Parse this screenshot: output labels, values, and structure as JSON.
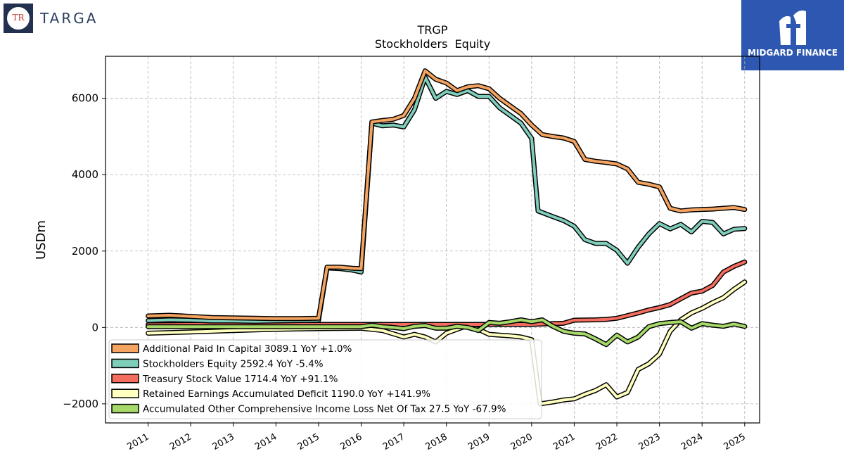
{
  "brand_left": {
    "logo_letters": "TR",
    "name": "TARGA"
  },
  "brand_right": {
    "name": "MIDGARD FINANCE"
  },
  "chart_data": {
    "type": "line",
    "title": "TRGP",
    "subtitle": "Stockholders  Equity",
    "ylabel": "USDm",
    "xlabel": "",
    "ylim": [
      -2500,
      7100
    ],
    "xlim": [
      2010.0,
      2025.35
    ],
    "yticks": [
      -2000,
      0,
      2000,
      4000,
      6000
    ],
    "ytick_labels": [
      "−2000",
      "0",
      "2000",
      "4000",
      "6000"
    ],
    "xticks": [
      2011,
      2012,
      2013,
      2014,
      2015,
      2016,
      2017,
      2018,
      2019,
      2020,
      2021,
      2022,
      2023,
      2024,
      2025
    ],
    "xtick_labels": [
      "2011",
      "2012",
      "2013",
      "2014",
      "2015",
      "2016",
      "2017",
      "2018",
      "2019",
      "2020",
      "2021",
      "2022",
      "2023",
      "2024",
      "2025"
    ],
    "grid": true,
    "legend_position": "lower-left",
    "series": [
      {
        "name": "Additional Paid In Capital",
        "legend_label": "Additional Paid In Capital  3089.1 YoY +1.0%",
        "color": "#f4a460",
        "points": [
          [
            2011.0,
            300
          ],
          [
            2011.5,
            320
          ],
          [
            2012.0,
            290
          ],
          [
            2012.5,
            260
          ],
          [
            2013.0,
            250
          ],
          [
            2013.5,
            240
          ],
          [
            2014.0,
            230
          ],
          [
            2014.5,
            230
          ],
          [
            2015.0,
            240
          ],
          [
            2015.2,
            1580
          ],
          [
            2015.5,
            1580
          ],
          [
            2015.8,
            1550
          ],
          [
            2016.0,
            1540
          ],
          [
            2016.25,
            5380
          ],
          [
            2016.5,
            5420
          ],
          [
            2016.75,
            5450
          ],
          [
            2017.0,
            5550
          ],
          [
            2017.25,
            6000
          ],
          [
            2017.5,
            6720
          ],
          [
            2017.75,
            6500
          ],
          [
            2018.0,
            6400
          ],
          [
            2018.25,
            6200
          ],
          [
            2018.5,
            6300
          ],
          [
            2018.75,
            6330
          ],
          [
            2019.0,
            6250
          ],
          [
            2019.25,
            6000
          ],
          [
            2019.5,
            5800
          ],
          [
            2019.75,
            5600
          ],
          [
            2020.0,
            5300
          ],
          [
            2020.25,
            5050
          ],
          [
            2020.5,
            5000
          ],
          [
            2020.75,
            4960
          ],
          [
            2021.0,
            4870
          ],
          [
            2021.25,
            4400
          ],
          [
            2021.5,
            4350
          ],
          [
            2021.75,
            4320
          ],
          [
            2022.0,
            4280
          ],
          [
            2022.25,
            4150
          ],
          [
            2022.5,
            3800
          ],
          [
            2022.75,
            3750
          ],
          [
            2023.0,
            3680
          ],
          [
            2023.25,
            3120
          ],
          [
            2023.5,
            3050
          ],
          [
            2023.75,
            3080
          ],
          [
            2024.0,
            3090
          ],
          [
            2024.25,
            3100
          ],
          [
            2024.5,
            3120
          ],
          [
            2024.75,
            3140
          ],
          [
            2025.0,
            3089
          ]
        ]
      },
      {
        "name": "Stockholders Equity",
        "legend_label": "Stockholders Equity  2592.4 YoY -5.4%",
        "color": "#7fcdbb",
        "points": [
          [
            2011.0,
            180
          ],
          [
            2011.5,
            200
          ],
          [
            2012.0,
            190
          ],
          [
            2012.5,
            170
          ],
          [
            2013.0,
            170
          ],
          [
            2013.5,
            160
          ],
          [
            2014.0,
            170
          ],
          [
            2014.5,
            180
          ],
          [
            2015.0,
            190
          ],
          [
            2015.2,
            1560
          ],
          [
            2015.5,
            1540
          ],
          [
            2015.8,
            1500
          ],
          [
            2016.0,
            1450
          ],
          [
            2016.25,
            5350
          ],
          [
            2016.5,
            5280
          ],
          [
            2016.75,
            5300
          ],
          [
            2017.0,
            5250
          ],
          [
            2017.25,
            5700
          ],
          [
            2017.5,
            6550
          ],
          [
            2017.75,
            6000
          ],
          [
            2018.0,
            6180
          ],
          [
            2018.25,
            6100
          ],
          [
            2018.5,
            6200
          ],
          [
            2018.75,
            6050
          ],
          [
            2019.0,
            6050
          ],
          [
            2019.25,
            5750
          ],
          [
            2019.5,
            5550
          ],
          [
            2019.75,
            5350
          ],
          [
            2020.0,
            4950
          ],
          [
            2020.15,
            3050
          ],
          [
            2020.5,
            2900
          ],
          [
            2020.75,
            2800
          ],
          [
            2021.0,
            2650
          ],
          [
            2021.25,
            2300
          ],
          [
            2021.5,
            2200
          ],
          [
            2021.75,
            2200
          ],
          [
            2022.0,
            2020
          ],
          [
            2022.25,
            1680
          ],
          [
            2022.5,
            2100
          ],
          [
            2022.75,
            2450
          ],
          [
            2023.0,
            2720
          ],
          [
            2023.25,
            2580
          ],
          [
            2023.5,
            2700
          ],
          [
            2023.75,
            2500
          ],
          [
            2024.0,
            2780
          ],
          [
            2024.25,
            2750
          ],
          [
            2024.5,
            2450
          ],
          [
            2024.75,
            2570
          ],
          [
            2025.0,
            2592
          ]
        ]
      },
      {
        "name": "Treasury Stock Value",
        "legend_label": "Treasury Stock Value  1714.4 YoY +91.1%",
        "color": "#f46d5e",
        "points": [
          [
            2011.0,
            70
          ],
          [
            2012.0,
            80
          ],
          [
            2013.0,
            80
          ],
          [
            2014.0,
            80
          ],
          [
            2015.0,
            80
          ],
          [
            2016.0,
            80
          ],
          [
            2017.0,
            80
          ],
          [
            2018.0,
            80
          ],
          [
            2019.0,
            80
          ],
          [
            2019.5,
            80
          ],
          [
            2020.0,
            80
          ],
          [
            2020.5,
            100
          ],
          [
            2020.75,
            110
          ],
          [
            2021.0,
            190
          ],
          [
            2021.5,
            200
          ],
          [
            2021.75,
            210
          ],
          [
            2022.0,
            240
          ],
          [
            2022.25,
            310
          ],
          [
            2022.5,
            380
          ],
          [
            2022.75,
            460
          ],
          [
            2023.0,
            520
          ],
          [
            2023.25,
            600
          ],
          [
            2023.5,
            750
          ],
          [
            2023.75,
            900
          ],
          [
            2024.0,
            950
          ],
          [
            2024.25,
            1100
          ],
          [
            2024.5,
            1450
          ],
          [
            2024.75,
            1600
          ],
          [
            2025.0,
            1714
          ]
        ]
      },
      {
        "name": "Retained Earnings Accumulated Deficit",
        "legend_label": "Retained Earnings Accumulated Deficit  1190.0 YoY +141.9%",
        "color": "#ffffbf",
        "points": [
          [
            2011.0,
            -150
          ],
          [
            2012.0,
            -120
          ],
          [
            2013.0,
            -80
          ],
          [
            2014.0,
            -50
          ],
          [
            2015.0,
            -30
          ],
          [
            2016.0,
            -20
          ],
          [
            2016.5,
            -80
          ],
          [
            2017.0,
            -250
          ],
          [
            2017.25,
            -180
          ],
          [
            2017.5,
            -250
          ],
          [
            2017.75,
            -380
          ],
          [
            2018.0,
            -150
          ],
          [
            2018.25,
            -50
          ],
          [
            2018.5,
            50
          ],
          [
            2018.75,
            -50
          ],
          [
            2019.0,
            -180
          ],
          [
            2019.25,
            -200
          ],
          [
            2019.5,
            -220
          ],
          [
            2019.75,
            -250
          ],
          [
            2020.0,
            -320
          ],
          [
            2020.2,
            -2000
          ],
          [
            2020.5,
            -1950
          ],
          [
            2020.75,
            -1900
          ],
          [
            2021.0,
            -1870
          ],
          [
            2021.25,
            -1750
          ],
          [
            2021.5,
            -1650
          ],
          [
            2021.75,
            -1500
          ],
          [
            2022.0,
            -1820
          ],
          [
            2022.25,
            -1700
          ],
          [
            2022.5,
            -1100
          ],
          [
            2022.75,
            -950
          ],
          [
            2023.0,
            -700
          ],
          [
            2023.25,
            -100
          ],
          [
            2023.5,
            200
          ],
          [
            2023.75,
            380
          ],
          [
            2024.0,
            500
          ],
          [
            2024.25,
            650
          ],
          [
            2024.5,
            780
          ],
          [
            2024.75,
            1000
          ],
          [
            2025.0,
            1190
          ]
        ]
      },
      {
        "name": "Accumulated Other Comprehensive Income Loss Net Of Tax",
        "legend_label": "Accumulated Other Comprehensive Income Loss Net Of Tax  27.5 YoY -67.9%",
        "color": "#a6d96a",
        "points": [
          [
            2011.0,
            20
          ],
          [
            2012.0,
            20
          ],
          [
            2013.0,
            20
          ],
          [
            2014.0,
            20
          ],
          [
            2015.0,
            20
          ],
          [
            2016.0,
            20
          ],
          [
            2016.25,
            60
          ],
          [
            2016.5,
            20
          ],
          [
            2016.75,
            0
          ],
          [
            2017.0,
            -30
          ],
          [
            2017.25,
            30
          ],
          [
            2017.5,
            50
          ],
          [
            2017.75,
            -20
          ],
          [
            2018.0,
            -20
          ],
          [
            2018.25,
            30
          ],
          [
            2018.5,
            0
          ],
          [
            2018.75,
            -80
          ],
          [
            2019.0,
            130
          ],
          [
            2019.25,
            110
          ],
          [
            2019.5,
            150
          ],
          [
            2019.75,
            200
          ],
          [
            2020.0,
            150
          ],
          [
            2020.25,
            200
          ],
          [
            2020.5,
            30
          ],
          [
            2020.75,
            -100
          ],
          [
            2021.0,
            -150
          ],
          [
            2021.25,
            -170
          ],
          [
            2021.5,
            -300
          ],
          [
            2021.75,
            -450
          ],
          [
            2022.0,
            -200
          ],
          [
            2022.25,
            -380
          ],
          [
            2022.5,
            -250
          ],
          [
            2022.75,
            20
          ],
          [
            2023.0,
            100
          ],
          [
            2023.25,
            130
          ],
          [
            2023.5,
            150
          ],
          [
            2023.75,
            -20
          ],
          [
            2024.0,
            100
          ],
          [
            2024.25,
            60
          ],
          [
            2024.5,
            30
          ],
          [
            2024.75,
            90
          ],
          [
            2025.0,
            27
          ]
        ]
      }
    ]
  }
}
